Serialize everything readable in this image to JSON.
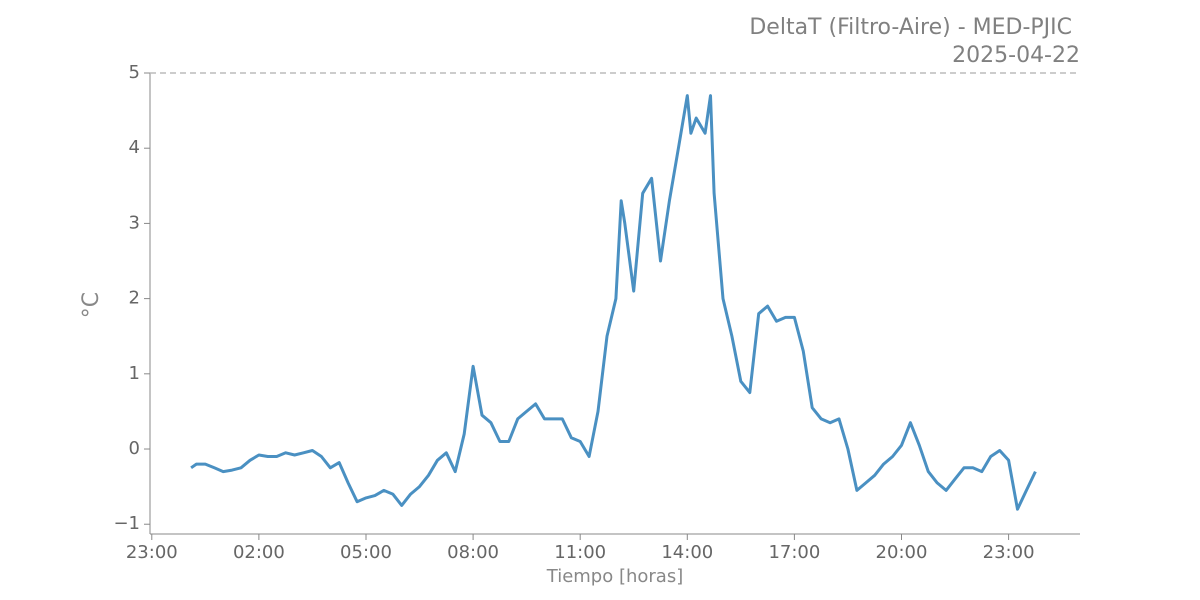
{
  "chart_data": {
    "type": "line",
    "title": "DeltaT (Filtro-Aire) - MED-PJIC",
    "subtitle": "2025-04-22",
    "x_label": "Tiempo [horas]",
    "y_label": "°C",
    "xlim": [
      -1.05,
      25.0
    ],
    "xticks": [
      {
        "value": -1,
        "label": "23:00"
      },
      {
        "value": 2,
        "label": "02:00"
      },
      {
        "value": 5,
        "label": "05:00"
      },
      {
        "value": 8,
        "label": "08:00"
      },
      {
        "value": 11,
        "label": "11:00"
      },
      {
        "value": 14,
        "label": "14:00"
      },
      {
        "value": 17,
        "label": "17:00"
      },
      {
        "value": 20,
        "label": "20:00"
      },
      {
        "value": 23,
        "label": "23:00"
      }
    ],
    "ylim": [
      -1.13,
      5
    ],
    "yticks": [
      {
        "value": -1,
        "label": "−1"
      },
      0,
      1,
      2,
      3,
      4,
      5
    ],
    "reference_line": 5,
    "x": [
      0.1,
      0.25,
      0.5,
      0.75,
      1.0,
      1.25,
      1.5,
      1.75,
      2.0,
      2.25,
      2.5,
      2.75,
      3.0,
      3.25,
      3.5,
      3.75,
      4.0,
      4.25,
      4.5,
      4.75,
      5.0,
      5.25,
      5.5,
      5.75,
      6.0,
      6.25,
      6.5,
      6.75,
      7.0,
      7.25,
      7.5,
      7.75,
      8.0,
      8.25,
      8.5,
      8.75,
      9.0,
      9.25,
      9.5,
      9.75,
      10.0,
      10.25,
      10.5,
      10.75,
      11.0,
      11.25,
      11.5,
      11.75,
      12.0,
      12.15,
      12.25,
      12.5,
      12.75,
      13.0,
      13.25,
      13.5,
      13.75,
      14.0,
      14.1,
      14.25,
      14.5,
      14.65,
      14.75,
      15.0,
      15.25,
      15.5,
      15.75,
      16.0,
      16.25,
      16.5,
      16.75,
      17.0,
      17.25,
      17.5,
      17.75,
      18.0,
      18.25,
      18.5,
      18.75,
      19.0,
      19.25,
      19.5,
      19.75,
      20.0,
      20.25,
      20.5,
      20.75,
      21.0,
      21.25,
      21.5,
      21.75,
      22.0,
      22.25,
      22.5,
      22.75,
      23.0,
      23.25,
      23.5,
      23.75
    ],
    "series": [
      {
        "name": "DeltaT",
        "color": "#4a90c2",
        "values": [
          -0.25,
          -0.2,
          -0.2,
          -0.25,
          -0.3,
          -0.28,
          -0.25,
          -0.15,
          -0.08,
          -0.1,
          -0.1,
          -0.05,
          -0.08,
          -0.05,
          -0.02,
          -0.1,
          -0.25,
          -0.18,
          -0.45,
          -0.7,
          -0.65,
          -0.62,
          -0.55,
          -0.6,
          -0.75,
          -0.6,
          -0.5,
          -0.35,
          -0.15,
          -0.05,
          -0.3,
          0.2,
          1.1,
          0.45,
          0.35,
          0.1,
          0.1,
          0.4,
          0.5,
          0.6,
          0.4,
          0.4,
          0.4,
          0.15,
          0.1,
          -0.1,
          0.5,
          1.5,
          2.0,
          3.3,
          3.0,
          2.1,
          3.4,
          3.6,
          2.5,
          3.3,
          4.0,
          4.7,
          4.2,
          4.4,
          4.2,
          4.7,
          3.4,
          2.0,
          1.5,
          0.9,
          0.75,
          1.8,
          1.9,
          1.7,
          1.75,
          1.75,
          1.3,
          0.55,
          0.4,
          0.35,
          0.4,
          0.0,
          -0.55,
          -0.45,
          -0.35,
          -0.2,
          -0.1,
          0.05,
          0.35,
          0.05,
          -0.3,
          -0.45,
          -0.55,
          -0.4,
          -0.25,
          -0.25,
          -0.3,
          -0.1,
          -0.02,
          -0.15,
          -0.8,
          -0.55,
          -0.3
        ]
      }
    ]
  }
}
